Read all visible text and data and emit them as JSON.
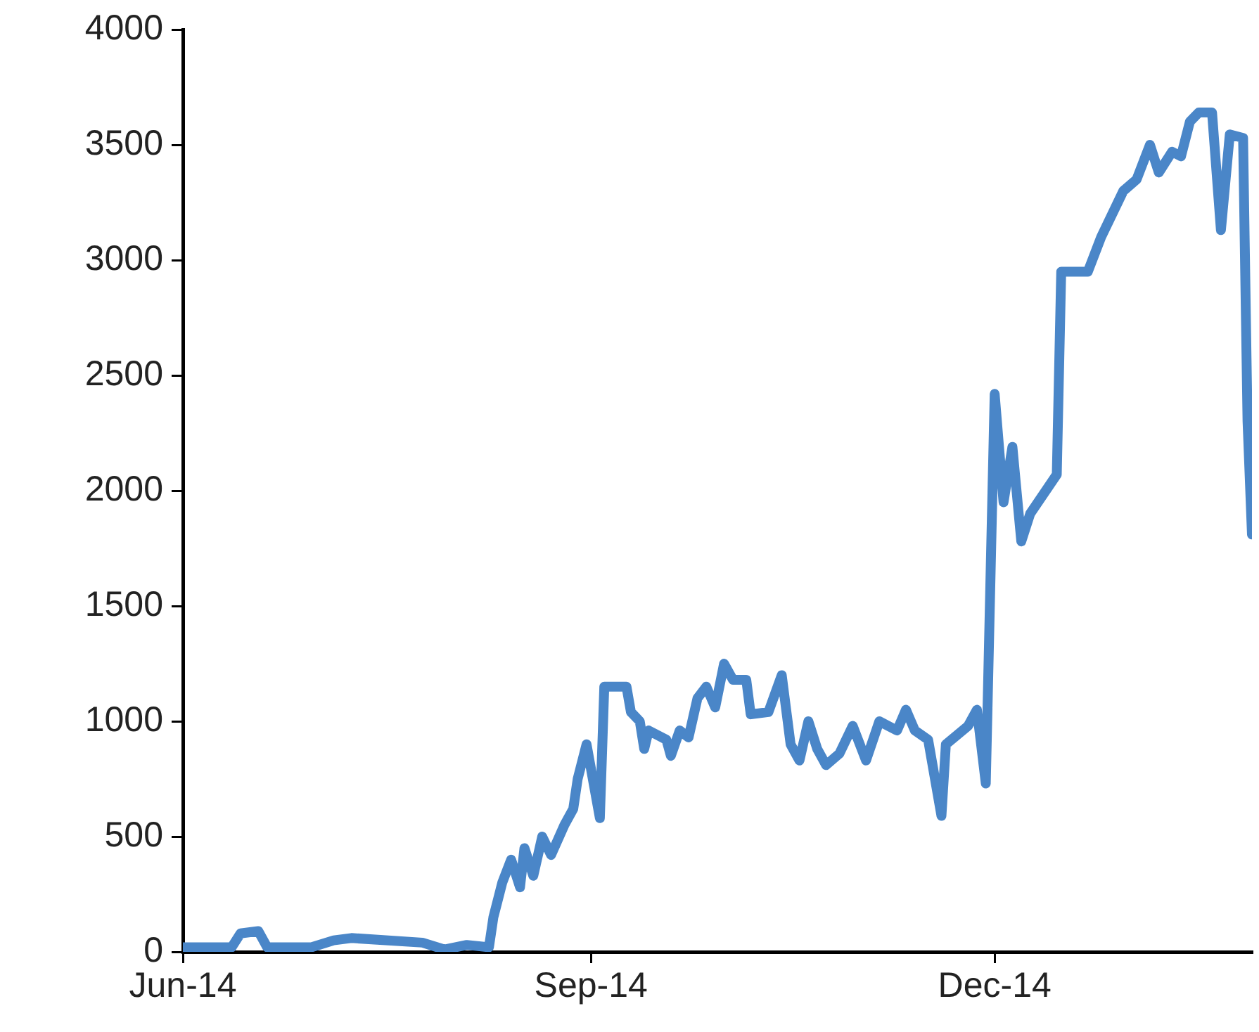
{
  "chart_data": {
    "type": "line",
    "x": [
      "2014-06-01",
      "2014-06-12",
      "2014-06-14",
      "2014-06-18",
      "2014-06-20",
      "2014-06-30",
      "2014-07-05",
      "2014-07-09",
      "2014-07-25",
      "2014-07-30",
      "2014-08-04",
      "2014-08-09",
      "2014-08-10",
      "2014-08-12",
      "2014-08-14",
      "2014-08-16",
      "2014-08-17",
      "2014-08-19",
      "2014-08-21",
      "2014-08-23",
      "2014-08-26",
      "2014-08-28",
      "2014-08-29",
      "2014-08-31",
      "2014-09-03",
      "2014-09-04",
      "2014-09-09",
      "2014-09-10",
      "2014-09-12",
      "2014-09-13",
      "2014-09-14",
      "2014-09-18",
      "2014-09-19",
      "2014-09-21",
      "2014-09-23",
      "2014-09-25",
      "2014-09-27",
      "2014-09-29",
      "2014-10-01",
      "2014-10-03",
      "2014-10-06",
      "2014-10-07",
      "2014-10-11",
      "2014-10-14",
      "2014-10-16",
      "2014-10-18",
      "2014-10-20",
      "2014-10-22",
      "2014-10-24",
      "2014-10-27",
      "2014-10-30",
      "2014-11-02",
      "2014-11-05",
      "2014-11-09",
      "2014-11-11",
      "2014-11-13",
      "2014-11-16",
      "2014-11-19",
      "2014-11-20",
      "2014-11-25",
      "2014-11-27",
      "2014-11-29",
      "2014-12-01",
      "2014-12-03",
      "2014-12-05",
      "2014-12-07",
      "2014-12-09",
      "2014-12-15",
      "2014-12-16",
      "2014-12-22",
      "2014-12-25",
      "2014-12-30",
      "2015-01-02",
      "2015-01-05",
      "2015-01-07",
      "2015-01-10",
      "2015-01-12",
      "2015-01-14",
      "2015-01-16",
      "2015-01-19",
      "2015-01-21",
      "2015-01-23",
      "2015-01-26",
      "2015-01-27",
      "2015-01-28"
    ],
    "series": [
      {
        "color": "#4a86c8",
        "values": [
          20,
          20,
          80,
          90,
          20,
          20,
          50,
          60,
          40,
          10,
          30,
          20,
          150,
          300,
          400,
          280,
          450,
          330,
          500,
          420,
          550,
          620,
          750,
          900,
          580,
          1150,
          1150,
          1040,
          1000,
          880,
          960,
          920,
          850,
          960,
          930,
          1100,
          1150,
          1060,
          1250,
          1180,
          1180,
          1030,
          1040,
          1200,
          900,
          830,
          1000,
          880,
          810,
          860,
          980,
          830,
          1000,
          960,
          1050,
          960,
          920,
          590,
          900,
          980,
          1050,
          730,
          2420,
          1950,
          2190,
          1780,
          1900,
          2070,
          2950,
          2950,
          3100,
          3300,
          3350,
          3500,
          3380,
          3470,
          3450,
          3600,
          3640,
          3640,
          3130,
          3545,
          3530,
          2300,
          1810
        ]
      }
    ],
    "xlim": [
      "2014-06-01",
      "2015-01-28"
    ],
    "xticks": [
      {
        "value": "2014-06-01",
        "label": "Jun-14"
      },
      {
        "value": "2014-09-01",
        "label": "Sep-14"
      },
      {
        "value": "2014-12-01",
        "label": "Dec-14"
      }
    ],
    "ylim": [
      0,
      4000
    ],
    "yticks": [
      0,
      500,
      1000,
      1500,
      2000,
      2500,
      3000,
      3500,
      4000
    ],
    "grid": false,
    "legend": false,
    "marker": "none",
    "line_style": "solid"
  }
}
